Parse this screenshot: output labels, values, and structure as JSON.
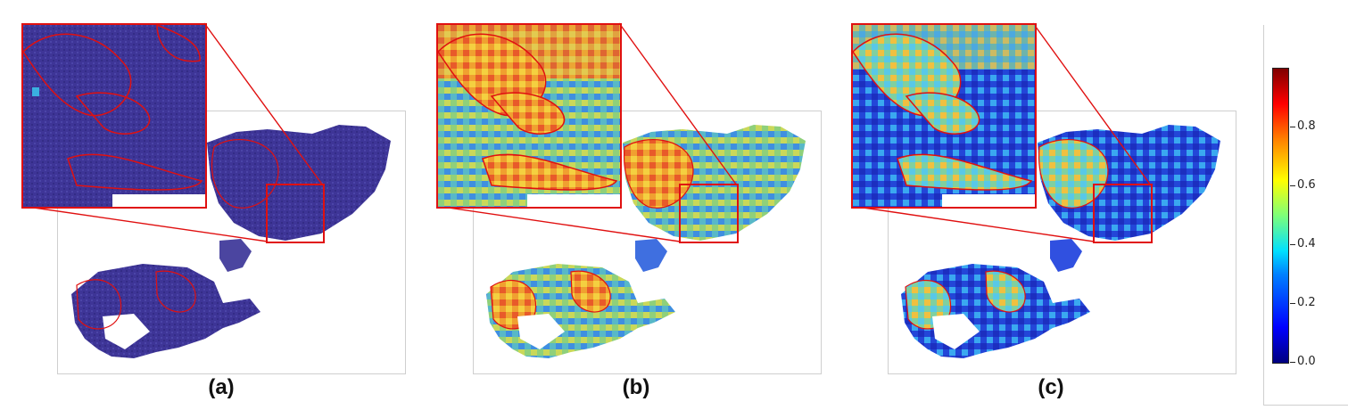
{
  "panels": [
    {
      "label": "(a)",
      "colormap": "low-uniform",
      "tissue_color": "#4a3fa0"
    },
    {
      "label": "(b)",
      "colormap": "high-activation",
      "tissue_color": "#3aa0d8"
    },
    {
      "label": "(c)",
      "colormap": "mid-activation",
      "tissue_color": "#2f5fe0"
    }
  ],
  "colorbar": {
    "ticks": [
      "0.0",
      "0.2",
      "0.4",
      "0.6",
      "0.8"
    ],
    "min": 0.0,
    "max": 1.0,
    "colormap": "jet"
  },
  "colors": {
    "annotation_outline": "#e01010",
    "frame": "#cfcfcf"
  }
}
